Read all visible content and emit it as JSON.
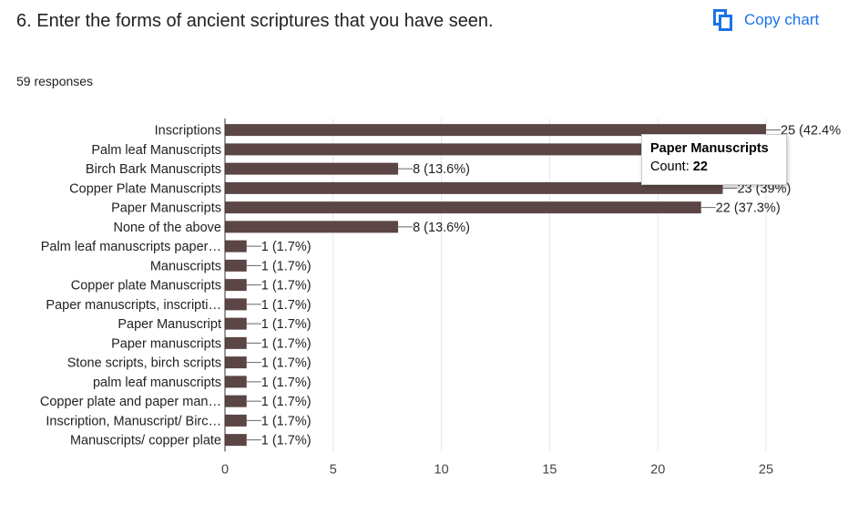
{
  "question": {
    "title": "6. Enter the forms of ancient scriptures that you have seen."
  },
  "toolbar": {
    "copy_label": "Copy chart",
    "copy_icon": "copy-icon"
  },
  "summary": {
    "responses": "59 responses"
  },
  "tooltip": {
    "category": "Paper Manuscripts",
    "count_label": "Count:",
    "count_value": "22"
  },
  "colors": {
    "bar": "#5b4545",
    "accent": "#1a73e8"
  },
  "chart_data": {
    "type": "bar",
    "orientation": "horizontal",
    "categories": [
      "Inscriptions",
      "Palm leaf Manuscripts",
      "Birch Bark Manuscripts",
      "Copper Plate Manuscripts",
      "Paper Manuscripts",
      "None of the above",
      "Palm leaf manuscripts paper…",
      "Manuscripts",
      "Copper plate Manuscripts",
      "Paper manuscripts, inscripti…",
      "Paper Manuscript",
      "Paper manuscripts",
      "Stone scripts, birch scripts",
      "palm leaf manuscripts",
      "Copper plate and paper man…",
      "Inscription, Manuscript/ Birc…",
      "Manuscripts/ copper plate"
    ],
    "values": [
      25,
      24,
      8,
      23,
      22,
      8,
      1,
      1,
      1,
      1,
      1,
      1,
      1,
      1,
      1,
      1,
      1
    ],
    "labels": [
      "25 (42.4%",
      "",
      "8 (13.6%)",
      "23 (39%)",
      "22 (37.3%)",
      "8 (13.6%)",
      "1 (1.7%)",
      "1 (1.7%)",
      "1 (1.7%)",
      "1 (1.7%)",
      "1 (1.7%)",
      "1 (1.7%)",
      "1 (1.7%)",
      "1 (1.7%)",
      "1 (1.7%)",
      "1 (1.7%)",
      "1 (1.7%)"
    ],
    "xlim": [
      0,
      25
    ],
    "xticks": [
      0,
      5,
      10,
      15,
      20,
      25
    ],
    "grid": true,
    "legend": "none"
  }
}
